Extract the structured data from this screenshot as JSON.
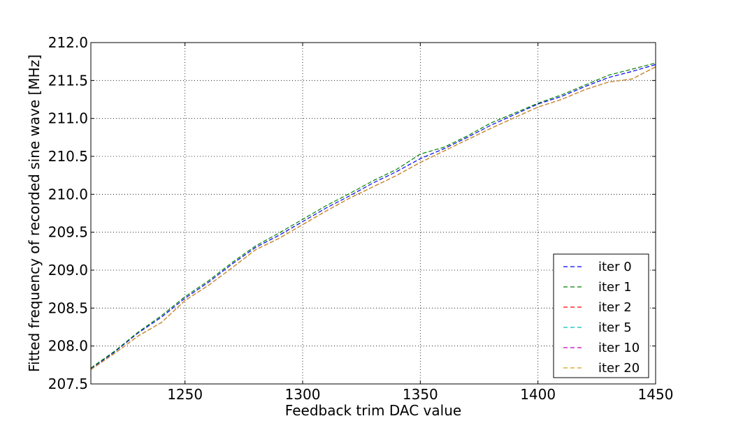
{
  "chart_data": {
    "type": "line",
    "title": "",
    "xlabel": "Feedback trim DAC value",
    "ylabel": "Fitted frequency of recorded sine wave [MHz]",
    "xlim": [
      1210,
      1450
    ],
    "ylim": [
      207.5,
      212.0
    ],
    "xticks": [
      1250,
      1300,
      1350,
      1400,
      1450
    ],
    "xtick_labels": [
      "1250",
      "1300",
      "1350",
      "1400",
      "1450"
    ],
    "yticks": [
      207.5,
      208.0,
      208.5,
      209.0,
      209.5,
      210.0,
      210.5,
      211.0,
      211.5,
      212.0
    ],
    "ytick_labels": [
      "207.5",
      "208.0",
      "208.5",
      "209.0",
      "209.5",
      "210.0",
      "210.5",
      "211.0",
      "211.5",
      "212.0"
    ],
    "grid": true,
    "legend_position": "lower-right",
    "line_style": "dashed",
    "series": [
      {
        "name": "iter 0",
        "color": "#0000ff",
        "x": [
          1210,
          1220,
          1230,
          1240,
          1250,
          1260,
          1270,
          1280,
          1290,
          1300,
          1310,
          1320,
          1330,
          1340,
          1350,
          1360,
          1370,
          1380,
          1390,
          1400,
          1410,
          1420,
          1430,
          1440,
          1450
        ],
        "y": [
          207.7,
          207.92,
          208.17,
          208.38,
          208.63,
          208.84,
          209.08,
          209.3,
          209.46,
          209.64,
          209.82,
          209.98,
          210.15,
          210.3,
          210.47,
          210.6,
          210.75,
          210.91,
          211.05,
          211.19,
          211.29,
          211.42,
          211.54,
          211.62,
          211.71
        ]
      },
      {
        "name": "iter 1",
        "color": "#008000",
        "x": [
          1210,
          1220,
          1230,
          1240,
          1250,
          1260,
          1270,
          1280,
          1290,
          1300,
          1310,
          1320,
          1330,
          1340,
          1350,
          1360,
          1370,
          1380,
          1390,
          1400,
          1410,
          1420,
          1430,
          1440,
          1450
        ],
        "y": [
          207.71,
          207.93,
          208.18,
          208.4,
          208.65,
          208.86,
          209.1,
          209.32,
          209.49,
          209.67,
          209.85,
          210.01,
          210.18,
          210.33,
          210.53,
          210.62,
          210.77,
          210.94,
          211.07,
          211.2,
          211.31,
          211.44,
          211.57,
          211.65,
          211.73
        ]
      },
      {
        "name": "iter 2",
        "color": "#ff0000",
        "x": [
          1210,
          1220,
          1230,
          1240,
          1250,
          1260,
          1270,
          1280,
          1290,
          1300,
          1310,
          1320,
          1330,
          1340,
          1350,
          1360,
          1370,
          1380,
          1390,
          1400,
          1410,
          1420,
          1430,
          1440,
          1450
        ],
        "y": [
          207.69,
          207.9,
          208.13,
          208.31,
          208.6,
          208.8,
          209.03,
          209.27,
          209.42,
          209.6,
          209.78,
          209.95,
          210.1,
          210.25,
          210.42,
          210.57,
          210.72,
          210.87,
          211.01,
          211.15,
          211.25,
          211.38,
          211.48,
          211.52,
          211.68
        ]
      },
      {
        "name": "iter 5",
        "color": "#00bfbf",
        "x": [
          1210,
          1220,
          1230,
          1240,
          1250,
          1260,
          1270,
          1280,
          1290,
          1300,
          1310,
          1320,
          1330,
          1340,
          1350,
          1360,
          1370,
          1380,
          1390,
          1400,
          1410,
          1420,
          1430,
          1440,
          1450
        ],
        "y": [
          207.69,
          207.9,
          208.13,
          208.31,
          208.6,
          208.8,
          209.03,
          209.27,
          209.42,
          209.6,
          209.78,
          209.95,
          210.1,
          210.25,
          210.42,
          210.57,
          210.72,
          210.87,
          211.01,
          211.15,
          211.25,
          211.38,
          211.48,
          211.52,
          211.68
        ]
      },
      {
        "name": "iter 10",
        "color": "#bf00bf",
        "x": [
          1210,
          1220,
          1230,
          1240,
          1250,
          1260,
          1270,
          1280,
          1290,
          1300,
          1310,
          1320,
          1330,
          1340,
          1350,
          1360,
          1370,
          1380,
          1390,
          1400,
          1410,
          1420,
          1430,
          1440,
          1450
        ],
        "y": [
          207.69,
          207.9,
          208.13,
          208.31,
          208.6,
          208.8,
          209.03,
          209.27,
          209.42,
          209.6,
          209.78,
          209.95,
          210.1,
          210.25,
          210.42,
          210.57,
          210.72,
          210.87,
          211.01,
          211.15,
          211.25,
          211.38,
          211.48,
          211.52,
          211.68
        ]
      },
      {
        "name": "iter 20",
        "color": "#d4a017",
        "x": [
          1210,
          1220,
          1230,
          1240,
          1250,
          1260,
          1270,
          1280,
          1290,
          1300,
          1310,
          1320,
          1330,
          1340,
          1350,
          1360,
          1370,
          1380,
          1390,
          1400,
          1410,
          1420,
          1430,
          1440,
          1450
        ],
        "y": [
          207.69,
          207.9,
          208.13,
          208.31,
          208.6,
          208.8,
          209.03,
          209.27,
          209.42,
          209.6,
          209.78,
          209.95,
          210.1,
          210.25,
          210.42,
          210.57,
          210.72,
          210.87,
          211.01,
          211.15,
          211.25,
          211.38,
          211.48,
          211.52,
          211.68
        ]
      }
    ]
  }
}
